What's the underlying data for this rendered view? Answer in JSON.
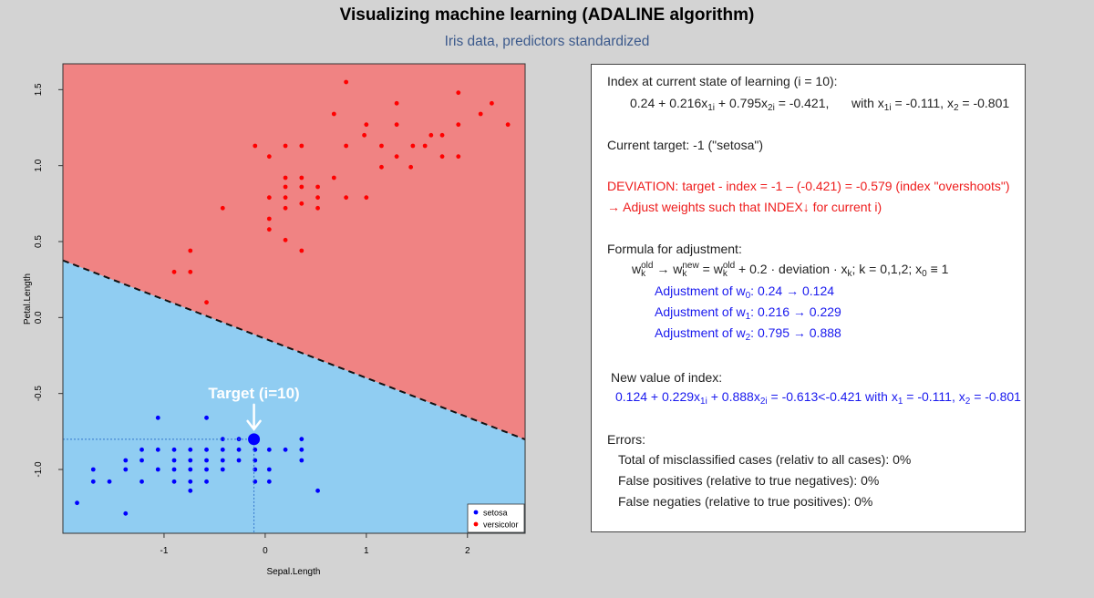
{
  "header": {
    "title": "Visualizing machine learning (ADALINE algorithm)",
    "subtitle": "Iris data, predictors standardized"
  },
  "colors": {
    "region_versicolor": "#f08383",
    "region_setosa": "#90cdf2",
    "setosa": "#0000ff",
    "versicolor": "#ff0000",
    "deviation_text": "#ee1c1c",
    "adjust_text": "#1a1aee"
  },
  "chart_data": {
    "type": "scatter",
    "xlabel": "Sepal.Length",
    "ylabel": "Petal.Length",
    "xlim": [
      -2.0,
      2.57
    ],
    "ylim": [
      -1.42,
      1.67
    ],
    "xticks": [
      "-1",
      "0",
      "1",
      "2"
    ],
    "yticks": [
      "-1.0",
      "-0.5",
      "0.0",
      "0.5",
      "1.0",
      "1.5"
    ],
    "legend": {
      "position": "bottom-right",
      "entries": [
        "setosa",
        "versicolor"
      ]
    },
    "decision_boundary": {
      "w0": 0.124,
      "w1": 0.229,
      "w2": 0.888,
      "style": "dashed"
    },
    "target": {
      "label": "Target (i=10)",
      "x": -0.111,
      "y": -0.801
    },
    "series": [
      {
        "name": "versicolor",
        "points": [
          [
            0.8,
            1.55
          ],
          [
            0.68,
            1.34
          ],
          [
            1.3,
            1.41
          ],
          [
            1.91,
            1.48
          ],
          [
            2.24,
            1.41
          ],
          [
            2.13,
            1.34
          ],
          [
            1.0,
            1.27
          ],
          [
            1.3,
            1.27
          ],
          [
            1.91,
            1.27
          ],
          [
            2.4,
            1.27
          ],
          [
            0.98,
            1.2
          ],
          [
            1.64,
            1.2
          ],
          [
            1.75,
            1.2
          ],
          [
            -0.1,
            1.13
          ],
          [
            0.2,
            1.13
          ],
          [
            0.36,
            1.13
          ],
          [
            0.8,
            1.13
          ],
          [
            1.15,
            1.13
          ],
          [
            1.46,
            1.13
          ],
          [
            1.58,
            1.13
          ],
          [
            0.04,
            1.06
          ],
          [
            1.3,
            1.06
          ],
          [
            1.75,
            1.06
          ],
          [
            1.91,
            1.06
          ],
          [
            1.15,
            0.99
          ],
          [
            1.44,
            0.99
          ],
          [
            0.2,
            0.92
          ],
          [
            0.36,
            0.92
          ],
          [
            0.68,
            0.92
          ],
          [
            0.2,
            0.86
          ],
          [
            0.36,
            0.86
          ],
          [
            0.52,
            0.86
          ],
          [
            0.52,
            0.79
          ],
          [
            0.04,
            0.79
          ],
          [
            0.2,
            0.79
          ],
          [
            0.8,
            0.79
          ],
          [
            1.0,
            0.79
          ],
          [
            0.36,
            0.75
          ],
          [
            0.52,
            0.72
          ],
          [
            -0.42,
            0.72
          ],
          [
            0.2,
            0.72
          ],
          [
            0.04,
            0.65
          ],
          [
            0.04,
            0.58
          ],
          [
            0.2,
            0.51
          ],
          [
            0.36,
            0.44
          ],
          [
            -0.74,
            0.44
          ],
          [
            -0.9,
            0.3
          ],
          [
            -0.74,
            0.3
          ],
          [
            -0.58,
            0.1
          ]
        ]
      },
      {
        "name": "setosa",
        "points": [
          [
            -1.06,
            -0.66
          ],
          [
            -0.58,
            -0.66
          ],
          [
            -0.42,
            -0.8
          ],
          [
            -0.26,
            -0.8
          ],
          [
            0.36,
            -0.8
          ],
          [
            -1.22,
            -0.87
          ],
          [
            -1.06,
            -0.87
          ],
          [
            -0.9,
            -0.87
          ],
          [
            -0.74,
            -0.87
          ],
          [
            -0.58,
            -0.87
          ],
          [
            -0.42,
            -0.87
          ],
          [
            -0.26,
            -0.87
          ],
          [
            -0.1,
            -0.87
          ],
          [
            0.04,
            -0.87
          ],
          [
            0.2,
            -0.87
          ],
          [
            0.36,
            -0.87
          ],
          [
            -1.38,
            -0.94
          ],
          [
            -1.22,
            -0.94
          ],
          [
            -0.9,
            -0.94
          ],
          [
            -0.74,
            -0.94
          ],
          [
            -0.58,
            -0.94
          ],
          [
            -0.42,
            -0.94
          ],
          [
            -0.26,
            -0.94
          ],
          [
            -0.1,
            -0.94
          ],
          [
            0.36,
            -0.94
          ],
          [
            -1.7,
            -1.0
          ],
          [
            -1.38,
            -1.0
          ],
          [
            -1.06,
            -1.0
          ],
          [
            -0.9,
            -1.0
          ],
          [
            -0.74,
            -1.0
          ],
          [
            -0.58,
            -1.0
          ],
          [
            -0.42,
            -1.0
          ],
          [
            -0.1,
            -1.0
          ],
          [
            0.04,
            -1.0
          ],
          [
            -1.7,
            -1.08
          ],
          [
            -1.54,
            -1.08
          ],
          [
            -1.22,
            -1.08
          ],
          [
            -0.9,
            -1.08
          ],
          [
            -0.74,
            -1.08
          ],
          [
            -0.58,
            -1.08
          ],
          [
            -0.1,
            -1.08
          ],
          [
            0.04,
            -1.08
          ],
          [
            -0.74,
            -1.14
          ],
          [
            0.52,
            -1.14
          ],
          [
            -1.86,
            -1.22
          ],
          [
            -1.38,
            -1.29
          ]
        ]
      }
    ]
  },
  "panel": {
    "l1": "Index at current state of learning (i = 10):",
    "l2a": "0.24 + 0.216x",
    "l2a_sub": "1i",
    "l2b": " + 0.795x",
    "l2b_sub": "2i",
    "l2c": " = -0.421,",
    "l2d": "with  x",
    "l2d_sub": "1i",
    "l2e": " = -0.111,  x",
    "l2e_sub": "2",
    "l2f": " = -0.801",
    "l3": "Current target: -1 (\"setosa\")",
    "l4": "DEVIATION: target - index = -1 – (-0.421) = -0.579 (index \"overshoots\")",
    "l5": "→ Adjust weights such that INDEX↓ for current i)",
    "l6": "Formula for adjustment:",
    "f_w1": "w",
    "f_sup1": "old",
    "f_sub1": "k",
    "f_arrow": " → w",
    "f_sup2": "new",
    "f_sub2": "k",
    "f_eq": " = w",
    "f_sup3": "old",
    "f_sub3": "k",
    "f_rest": " + 0.2 · deviation · x",
    "f_sub4": "k",
    "f_tail": ";     k = 0,1,2;  x",
    "f_sub5": "0",
    "f_end": " ≡ 1",
    "a0a": "Adjustment of w",
    "a0s": "0",
    "a0b": ":  0.24 → 0.124",
    "a1a": "Adjustment of w",
    "a1s": "1",
    "a1b": ":  0.216 → 0.229",
    "a2a": "Adjustment of w",
    "a2s": "2",
    "a2b": ":  0.795 → 0.888",
    "l7": "New value of index:",
    "n1": "0.124 + 0.229x",
    "n1s": "1i",
    "n2": " + 0.888x",
    "n2s": "2i",
    "n3": " = -0.613<-0.421  with x",
    "n3s": "1",
    "n4": " = -0.111,  x",
    "n4s": "2",
    "n5": " = -0.801",
    "l8": "Errors:",
    "e1": "Total of misclassified cases (relativ to all cases): 0%",
    "e2": "False positives (relative to true negatives): 0%",
    "e3": "False negaties (relative to true positives): 0%"
  }
}
